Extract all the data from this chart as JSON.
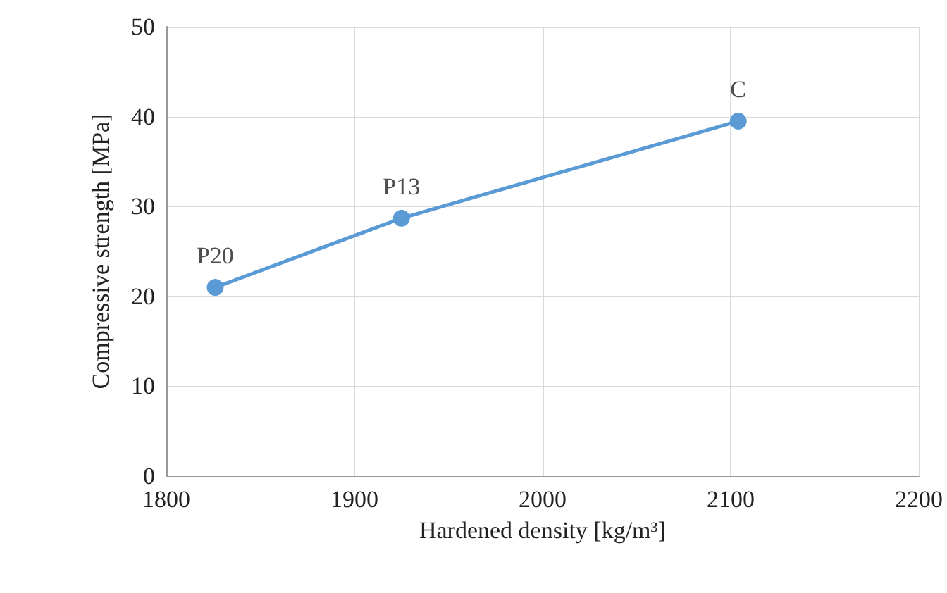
{
  "chart_data": {
    "type": "line",
    "xlabel": "Hardened density [kg/m³]",
    "ylabel": "Compressive strength [MPa]",
    "x": [
      1826,
      1925,
      2104
    ],
    "series": [
      {
        "color": "#5b9bd5",
        "values": [
          21.0,
          28.7,
          39.5
        ]
      }
    ],
    "xlim": [
      1800,
      2200
    ],
    "xticks": [
      1800,
      1900,
      2000,
      2100,
      2200
    ],
    "ylim": [
      0,
      50
    ],
    "yticks": [
      0,
      10,
      20,
      30,
      40,
      50
    ],
    "grid": true,
    "marker": "circle",
    "line_style": "solid",
    "annotations": [
      {
        "text": "P20",
        "x": 1826,
        "y": 21.0
      },
      {
        "text": "P13",
        "x": 1925,
        "y": 28.7
      },
      {
        "text": "C",
        "x": 2104,
        "y": 39.5
      }
    ]
  }
}
